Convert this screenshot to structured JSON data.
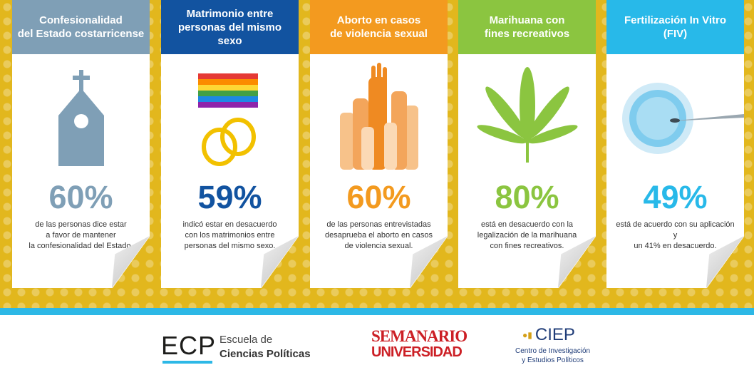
{
  "colors": {
    "background": "#e2b71d",
    "stripe": "#2db8e6",
    "card1": "#7f9fb6",
    "card2": "#1253a0",
    "card3": "#f39a1f",
    "card4": "#8bc540",
    "card5": "#28b9e9"
  },
  "cards": [
    {
      "title": "Confesionalidad\ndel Estado costarricense",
      "icon": "church-icon",
      "percent": "60%",
      "description": "de las personas dice estar\na favor de mantener\nla confesionalidad del Estado."
    },
    {
      "title": "Matrimonio entre\npersonas del mismo sexo",
      "icon": "rainbow-flag-rings-icon",
      "percent": "59%",
      "description": "indicó estar en desacuerdo\ncon los matrimonios entre\npersonas del mismo sexo."
    },
    {
      "title": "Aborto en casos\nde violencia sexual",
      "icon": "raised-hands-icon",
      "percent": "60%",
      "description": "de las personas entrevistadas\ndesaprueba el aborto en casos\nde violencia sexual."
    },
    {
      "title": "Marihuana con\nfines recreativos",
      "icon": "cannabis-leaf-icon",
      "percent": "80%",
      "description": "está en desacuerdo con la\nlegalización de la marihuana\ncon fines recreativos."
    },
    {
      "title": "Fertilización In Vitro\n(FIV)",
      "icon": "ivf-cell-needle-icon",
      "percent": "49%",
      "description": "está de acuerdo con su aplicación y\nun 41% en desacuerdo."
    }
  ],
  "logos": {
    "ecp_mark": "ECP",
    "ecp_line1": "Escuela de",
    "ecp_line2": "Ciencias Políticas",
    "semanario_line1": "SEMANARIO",
    "semanario_line2": "UNIVERSIDAD",
    "ciep_mark": "CIEP",
    "ciep_line1": "Centro de Investigación",
    "ciep_line2": "y Estudios Políticos"
  }
}
